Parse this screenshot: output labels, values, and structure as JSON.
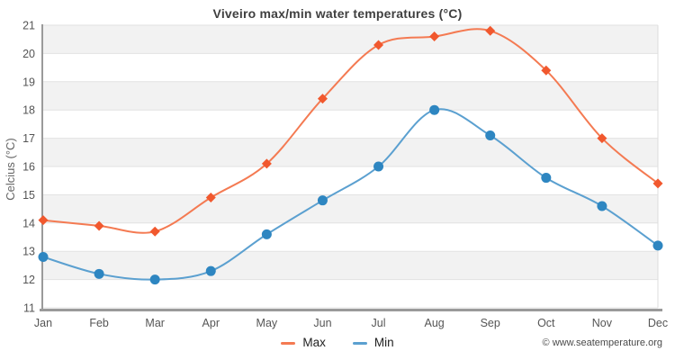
{
  "chart_data": {
    "type": "line",
    "title": "Viveiro max/min water temperatures (°C)",
    "xlabel": "",
    "ylabel": "Celcius (°C)",
    "categories": [
      "Jan",
      "Feb",
      "Mar",
      "Apr",
      "May",
      "Jun",
      "Jul",
      "Aug",
      "Sep",
      "Oct",
      "Nov",
      "Dec"
    ],
    "series": [
      {
        "name": "Max",
        "marker": "diamond",
        "marker_color": "#f1582e",
        "line_color": "#f47a52",
        "values": [
          14.1,
          13.9,
          13.7,
          14.9,
          16.1,
          18.4,
          20.3,
          20.6,
          20.8,
          19.4,
          17.0,
          15.4
        ]
      },
      {
        "name": "Min",
        "marker": "circle",
        "marker_color": "#2e86c1",
        "line_color": "#5ba0d0",
        "values": [
          12.8,
          12.2,
          12.0,
          12.3,
          13.6,
          14.8,
          16.0,
          18.0,
          17.1,
          15.6,
          14.6,
          13.2
        ]
      }
    ],
    "ylim": [
      11,
      21
    ],
    "ytick_step": 1,
    "grid": "horizontal-bands",
    "band_colors": [
      "#f2f2f2",
      "#ffffff"
    ],
    "gridline_color": "#e2e2e2",
    "axis_color": "#9a9a9a",
    "plot_right_border_color": "#dcdcdc",
    "tick_label_color": "#555555",
    "legend_position": "bottom",
    "background": "#ffffff"
  },
  "footer": {
    "copyright": "© www.seatemperature.org"
  }
}
